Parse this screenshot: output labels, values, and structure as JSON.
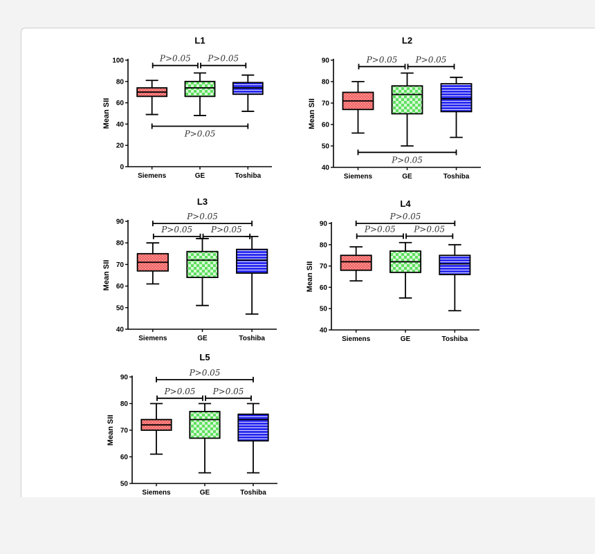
{
  "colors": {
    "siemens_fill": "#f26a6a",
    "siemens_pattern": "#ffffff",
    "ge_fill": "#52d652",
    "ge_pattern": "#ffffff",
    "toshiba_fill": "#2b2bf0",
    "toshiba_pattern": "#ffffff"
  },
  "chart_data": [
    {
      "type": "box",
      "title": "L1",
      "ylabel": "Mean SII",
      "ylim": [
        0,
        100
      ],
      "yticks": [
        0,
        20,
        40,
        60,
        80,
        100
      ],
      "categories": [
        "Siemens",
        "GE",
        "Toshiba"
      ],
      "boxes": [
        {
          "name": "Siemens",
          "min": 49,
          "q1": 66,
          "median": 70,
          "q3": 74,
          "max": 81
        },
        {
          "name": "GE",
          "min": 48,
          "q1": 66,
          "median": 74,
          "q3": 80,
          "max": 88
        },
        {
          "name": "Toshiba",
          "min": 52,
          "q1": 68,
          "median": 74,
          "q3": 79,
          "max": 86
        }
      ],
      "comparisons": [
        {
          "from": "Siemens",
          "to": "GE",
          "y": 95,
          "label": "P>0.05",
          "label_pos": "above"
        },
        {
          "from": "GE",
          "to": "Toshiba",
          "y": 95,
          "label": "P>0.05",
          "label_pos": "above"
        },
        {
          "from": "Siemens",
          "to": "Toshiba",
          "y": 38,
          "label": "P>0.05",
          "label_pos": "below"
        }
      ]
    },
    {
      "type": "box",
      "title": "L2",
      "ylabel": "Mean SII",
      "ylim": [
        40,
        90
      ],
      "yticks": [
        40,
        50,
        60,
        70,
        80,
        90
      ],
      "categories": [
        "Siemens",
        "GE",
        "Toshiba"
      ],
      "boxes": [
        {
          "name": "Siemens",
          "min": 56,
          "q1": 67,
          "median": 71,
          "q3": 75,
          "max": 80
        },
        {
          "name": "GE",
          "min": 50,
          "q1": 65,
          "median": 74,
          "q3": 78,
          "max": 84
        },
        {
          "name": "Toshiba",
          "min": 54,
          "q1": 66,
          "median": 72,
          "q3": 79,
          "max": 82
        }
      ],
      "comparisons": [
        {
          "from": "Siemens",
          "to": "GE",
          "y": 87,
          "label": "P>0.05",
          "label_pos": "above"
        },
        {
          "from": "GE",
          "to": "Toshiba",
          "y": 87,
          "label": "P>0.05",
          "label_pos": "above"
        },
        {
          "from": "Siemens",
          "to": "Toshiba",
          "y": 47,
          "label": "P>0.05",
          "label_pos": "below"
        }
      ]
    },
    {
      "type": "box",
      "title": "L3",
      "ylabel": "Mean SII",
      "ylim": [
        40,
        90
      ],
      "yticks": [
        40,
        50,
        60,
        70,
        80,
        90
      ],
      "categories": [
        "Siemens",
        "GE",
        "Toshiba"
      ],
      "boxes": [
        {
          "name": "Siemens",
          "min": 61,
          "q1": 67,
          "median": 71,
          "q3": 75,
          "max": 80
        },
        {
          "name": "GE",
          "min": 51,
          "q1": 64,
          "median": 72,
          "q3": 76,
          "max": 82
        },
        {
          "name": "Toshiba",
          "min": 47,
          "q1": 66,
          "median": 72,
          "q3": 77,
          "max": 83
        }
      ],
      "comparisons": [
        {
          "from": "Siemens",
          "to": "Toshiba",
          "y": 89,
          "label": "P>0.05",
          "label_pos": "above"
        },
        {
          "from": "Siemens",
          "to": "GE",
          "y": 83,
          "label": "P>0.05",
          "label_pos": "above"
        },
        {
          "from": "GE",
          "to": "Toshiba",
          "y": 83,
          "label": "P>0.05",
          "label_pos": "above"
        }
      ]
    },
    {
      "type": "box",
      "title": "L4",
      "ylabel": "Mean SII",
      "ylim": [
        40,
        90
      ],
      "yticks": [
        40,
        50,
        60,
        70,
        80,
        90
      ],
      "categories": [
        "Siemens",
        "GE",
        "Toshiba"
      ],
      "boxes": [
        {
          "name": "Siemens",
          "min": 63,
          "q1": 68,
          "median": 72,
          "q3": 75,
          "max": 79
        },
        {
          "name": "GE",
          "min": 55,
          "q1": 67,
          "median": 72,
          "q3": 77,
          "max": 81
        },
        {
          "name": "Toshiba",
          "min": 49,
          "q1": 66,
          "median": 71,
          "q3": 75,
          "max": 80
        }
      ],
      "comparisons": [
        {
          "from": "Siemens",
          "to": "Toshiba",
          "y": 90,
          "label": "P>0.05",
          "label_pos": "above"
        },
        {
          "from": "Siemens",
          "to": "GE",
          "y": 84,
          "label": "P>0.05",
          "label_pos": "above"
        },
        {
          "from": "GE",
          "to": "Toshiba",
          "y": 84,
          "label": "P>0.05",
          "label_pos": "above"
        }
      ]
    },
    {
      "type": "box",
      "title": "L5",
      "ylabel": "Mean SII",
      "ylim": [
        50,
        90
      ],
      "yticks": [
        50,
        60,
        70,
        80,
        90
      ],
      "categories": [
        "Siemens",
        "GE",
        "Toshiba"
      ],
      "boxes": [
        {
          "name": "Siemens",
          "min": 61,
          "q1": 70,
          "median": 72,
          "q3": 74,
          "max": 80
        },
        {
          "name": "GE",
          "min": 54,
          "q1": 67,
          "median": 74,
          "q3": 77,
          "max": 80
        },
        {
          "name": "Toshiba",
          "min": 54,
          "q1": 66,
          "median": 74,
          "q3": 76,
          "max": 80
        }
      ],
      "comparisons": [
        {
          "from": "Siemens",
          "to": "Toshiba",
          "y": 89,
          "label": "P>0.05",
          "label_pos": "above"
        },
        {
          "from": "Siemens",
          "to": "GE",
          "y": 82,
          "label": "P>0.05",
          "label_pos": "above"
        },
        {
          "from": "GE",
          "to": "Toshiba",
          "y": 82,
          "label": "P>0.05",
          "label_pos": "above"
        }
      ]
    }
  ]
}
